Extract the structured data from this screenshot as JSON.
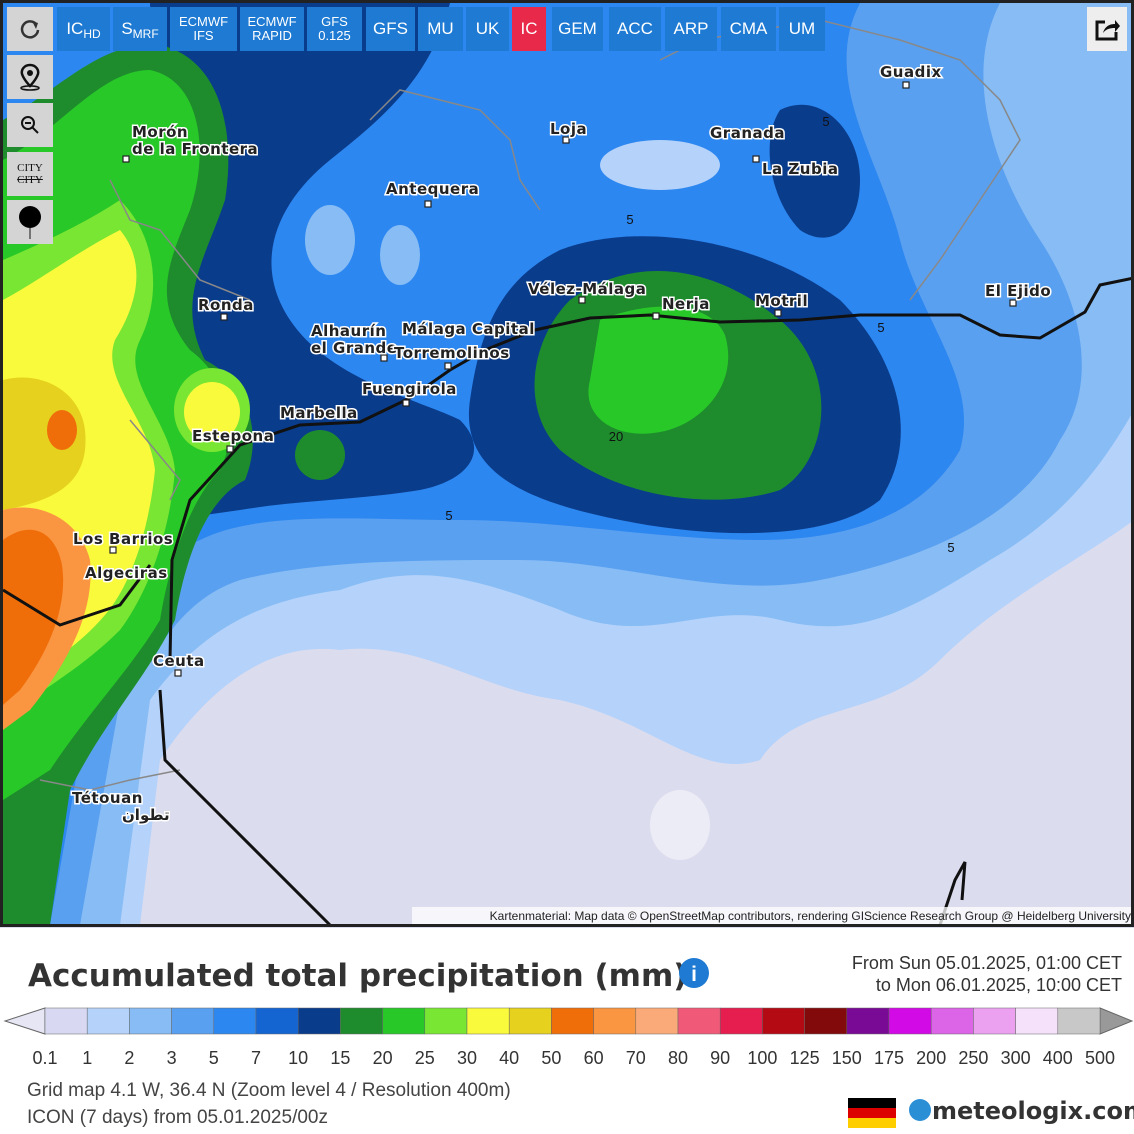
{
  "toolbar": {
    "models": [
      {
        "text": "IC",
        "sub": "HD"
      },
      {
        "text": "S",
        "sub": "MRF"
      },
      {
        "text": "ECMWF",
        "line2": "IFS"
      },
      {
        "text": "ECMWF",
        "line2": "RAPID"
      },
      {
        "text": "GFS",
        "line2": "0.125"
      },
      {
        "text": "GFS"
      },
      {
        "text": "MU"
      },
      {
        "text": "UK"
      },
      {
        "text": "IC"
      },
      {
        "text": "GEM"
      },
      {
        "text": "ACC"
      },
      {
        "text": "ARP"
      },
      {
        "text": "CMA"
      },
      {
        "text": "UM"
      }
    ],
    "active_model": 8,
    "city_toggle": [
      "CITY",
      "CITY"
    ]
  },
  "map": {
    "places": [
      {
        "label": "Morón",
        "line2": "de la Frontera"
      },
      {
        "label": "Guadix"
      },
      {
        "label": "Loja"
      },
      {
        "label": "Granada"
      },
      {
        "label": "La Zubia"
      },
      {
        "label": "Antequera"
      },
      {
        "label": "Vélez-Málaga"
      },
      {
        "label": "Nerja"
      },
      {
        "label": "Motril"
      },
      {
        "label": "El Ejido"
      },
      {
        "label": "Ronda"
      },
      {
        "label": "Alhaurín",
        "line2": "el Grande"
      },
      {
        "label": "Málaga Capital"
      },
      {
        "label": "Torremolinos"
      },
      {
        "label": "Fuengirola"
      },
      {
        "label": "Marbella"
      },
      {
        "label": "Estepona"
      },
      {
        "label": "Los Barrios"
      },
      {
        "label": "Algeciras"
      },
      {
        "label": "Ceuta"
      },
      {
        "label": "Tétouan",
        "line2": "تطوان"
      }
    ],
    "contour_labels": [
      "5",
      "5",
      "5",
      "5",
      "5",
      "20"
    ],
    "attribution": "Kartenmaterial: Map data © OpenStreetMap contributors, rendering GIScience Research Group @ Heidelberg University"
  },
  "legend": {
    "title": "Accumulated total precipitation (mm)",
    "period": [
      "From Sun 05.01.2025, 01:00 CET",
      "to Mon 06.01.2025, 10:00 CET"
    ],
    "labels": [
      0.1,
      1,
      2,
      3,
      5,
      7,
      10,
      15,
      20,
      25,
      30,
      40,
      50,
      60,
      70,
      80,
      90,
      100,
      125,
      150,
      175,
      200,
      250,
      300,
      400,
      500
    ],
    "colors": [
      "#d8d8f2",
      "#b4d2fa",
      "#87bcf5",
      "#5aa0f0",
      "#2d87f0",
      "#1464d2",
      "#0a3c8c",
      "#1e8c2d",
      "#28c828",
      "#78e632",
      "#fafa3c",
      "#e6d21e",
      "#f06e0a",
      "#fa9641",
      "#faaa78",
      "#f05a78",
      "#e61e50",
      "#b40a14",
      "#820a0a",
      "#780a96",
      "#d20ae6",
      "#dc64e6",
      "#eba0f0",
      "#f5e1fa",
      "#c8c8c8"
    ],
    "under_color": "#e6e6f5",
    "over_color": "#999999"
  },
  "footer": {
    "lines": [
      "Grid map 4.1 W, 36.4 N (Zoom level 4 / Resolution 400m)",
      "ICON (7 days) from 05.01.2025/00z"
    ],
    "brand": "meteologix.com"
  }
}
